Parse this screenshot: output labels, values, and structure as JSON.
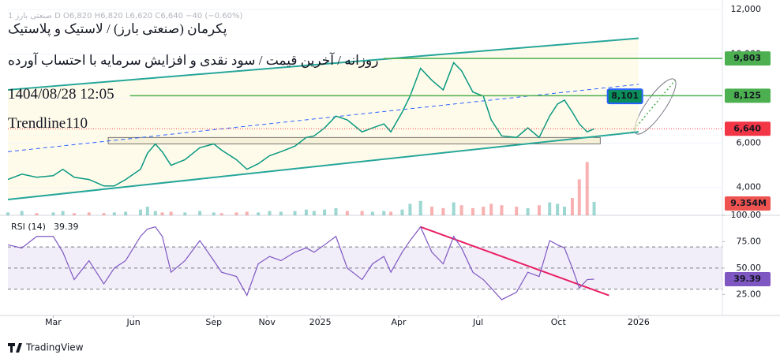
{
  "header": {
    "ohlc": "1  صنعتی بارز  D  O6,820  H6,820  L6,620  C6,640  −40 (−0.60%)"
  },
  "footer": {
    "brand": "TradingView"
  },
  "chart_data": [
    {
      "type": "line",
      "title": "پکرمان (صنعتی بارز) / لاستیک و پلاستیک",
      "subtitle": "روزانه / آخرین قیمت / سود نقدی و افزایش سرمایه با احتساب آورده",
      "annotations": [
        "1404/08/28 12:05",
        "Trendline110"
      ],
      "color": "#089981",
      "x": [
        "2024-01-09",
        "2024-01-25",
        "2024-02-11",
        "2024-03-01",
        "2024-03-12",
        "2024-03-25",
        "2024-04-11",
        "2024-04-28",
        "2024-05-10",
        "2024-05-23",
        "2024-06-09",
        "2024-06-17",
        "2024-06-26",
        "2024-07-04",
        "2024-07-14",
        "2024-07-30",
        "2024-08-16",
        "2024-09-01",
        "2024-09-10",
        "2024-09-27",
        "2024-10-09",
        "2024-10-22",
        "2024-11-04",
        "2024-11-17",
        "2024-12-03",
        "2024-12-16",
        "2024-12-25",
        "2025-01-06",
        "2025-01-19",
        "2025-02-01",
        "2025-02-18",
        "2025-03-02",
        "2025-03-15",
        "2025-03-23",
        "2025-04-05",
        "2025-04-14",
        "2025-04-26",
        "2025-05-09",
        "2025-05-22",
        "2025-06-03",
        "2025-06-12",
        "2025-06-25",
        "2025-07-07",
        "2025-07-16",
        "2025-07-28",
        "2025-08-14",
        "2025-08-27",
        "2025-09-09",
        "2025-09-21",
        "2025-09-30",
        "2025-10-08",
        "2025-10-17",
        "2025-10-25",
        "2025-11-03",
        "2025-11-11"
      ],
      "values": [
        4360,
        4600,
        4460,
        4530,
        4820,
        4460,
        4360,
        4070,
        4070,
        4360,
        4820,
        5540,
        5960,
        5600,
        5000,
        5250,
        5790,
        5960,
        5680,
        5250,
        4820,
        5070,
        5430,
        5610,
        5860,
        6250,
        6320,
        6680,
        7210,
        7040,
        6500,
        6680,
        6860,
        6500,
        7390,
        8110,
        9360,
        8820,
        8390,
        9610,
        9250,
        8290,
        8110,
        7040,
        6320,
        6250,
        6680,
        6250,
        7210,
        7750,
        7930,
        7390,
        6860,
        6500,
        6640
      ],
      "xlim": [
        "2024-01-09",
        "2026-04-07"
      ],
      "xticks": [
        {
          "value": "2024-03",
          "label": "Mar"
        },
        {
          "value": "2024-06",
          "label": "Jun"
        },
        {
          "value": "2024-09",
          "label": "Sep"
        },
        {
          "value": "2024-11",
          "label": "Nov"
        },
        {
          "value": "2025-01",
          "label": "2025"
        },
        {
          "value": "2025-04",
          "label": "Apr"
        },
        {
          "value": "2025-07",
          "label": "Jul"
        },
        {
          "value": "2025-10",
          "label": "Oct"
        },
        {
          "value": "2026-01",
          "label": "2026"
        }
      ],
      "ylim": [
        2750,
        12430
      ],
      "yticks": [
        {
          "value": 4000,
          "label": "4,000"
        },
        {
          "value": 6000,
          "label": "6,000"
        },
        {
          "value": 8000,
          "label": "8,000"
        },
        {
          "value": 10000,
          "label": "10,000"
        },
        {
          "value": 12000,
          "label": "12,000"
        }
      ],
      "trendlines": [
        {
          "x": [
            "2024-01-09",
            "2026-01-01"
          ],
          "values": [
            8390,
            10710
          ],
          "color": "#26a69a"
        },
        {
          "x": [
            "2024-01-09",
            "2026-01-01"
          ],
          "values": [
            3460,
            6500
          ],
          "color": "#26a69a"
        },
        {
          "x": [
            "2024-01-09",
            "2026-01-01"
          ],
          "values": [
            5610,
            8640
          ],
          "color": "#2962ff",
          "dash": true
        }
      ],
      "support_zone": {
        "x": [
          "2024-05-03",
          "2025-11-18"
        ],
        "values": [
          5960,
          6250
        ]
      },
      "levels": [
        {
          "value": 9803,
          "label": "9,803",
          "color": "#4caf50",
          "from": "2025-03-15"
        },
        {
          "value": 8125,
          "label": "8,125",
          "color": "#4caf50",
          "from": "2024-05-28"
        },
        {
          "value": 6640,
          "label": "6,640",
          "color": "#f23645",
          "from": "2024-01-09",
          "dotted": true
        },
        {
          "value": 8101,
          "label": "8,101",
          "color": "#0a8f5b",
          "at": "2025-12-20"
        }
      ]
    },
    {
      "type": "bar",
      "x": [
        "2024-01-09",
        "2024-01-25",
        "2024-02-11",
        "2024-03-01",
        "2024-03-12",
        "2024-03-25",
        "2024-04-11",
        "2024-04-28",
        "2024-05-10",
        "2024-05-23",
        "2024-06-09",
        "2024-06-17",
        "2024-06-26",
        "2024-07-04",
        "2024-07-14",
        "2024-07-30",
        "2024-08-16",
        "2024-09-01",
        "2024-09-10",
        "2024-09-27",
        "2024-10-09",
        "2024-10-22",
        "2024-11-04",
        "2024-11-17",
        "2024-12-03",
        "2024-12-16",
        "2024-12-25",
        "2025-01-06",
        "2025-01-19",
        "2025-02-01",
        "2025-02-18",
        "2025-03-02",
        "2025-03-15",
        "2025-03-23",
        "2025-04-05",
        "2025-04-14",
        "2025-04-26",
        "2025-05-09",
        "2025-05-22",
        "2025-06-03",
        "2025-06-12",
        "2025-06-25",
        "2025-07-07",
        "2025-07-16",
        "2025-07-28",
        "2025-08-14",
        "2025-08-27",
        "2025-09-09",
        "2025-09-21",
        "2025-09-30",
        "2025-10-08",
        "2025-10-17",
        "2025-10-25",
        "2025-11-03",
        "2025-11-11"
      ],
      "values": [
        2,
        3,
        1.5,
        2,
        3,
        1.5,
        2,
        1.5,
        2,
        2.5,
        4,
        6,
        3,
        2,
        2.5,
        2,
        3,
        2,
        1.5,
        2,
        2.5,
        2,
        3,
        2.5,
        3,
        4,
        3,
        4,
        5,
        3,
        3,
        2.5,
        3,
        2.5,
        4,
        8,
        10,
        6,
        5,
        9,
        7,
        5,
        6,
        8,
        7,
        6,
        5,
        7,
        9,
        8,
        6,
        12,
        25,
        37,
        9.354
      ],
      "ylim": [
        0,
        40
      ],
      "color": "#26a69a",
      "down_color": "#ef5350",
      "last_label": {
        "value": 9.354,
        "label": "9.354M"
      }
    },
    {
      "type": "line",
      "title": "RSI (14)",
      "color": "#7e57c2",
      "x": [
        "2024-01-09",
        "2024-01-25",
        "2024-02-11",
        "2024-03-01",
        "2024-03-12",
        "2024-03-25",
        "2024-04-11",
        "2024-04-28",
        "2024-05-10",
        "2024-05-23",
        "2024-06-09",
        "2024-06-17",
        "2024-06-26",
        "2024-07-04",
        "2024-07-14",
        "2024-07-30",
        "2024-08-16",
        "2024-09-01",
        "2024-09-10",
        "2024-09-27",
        "2024-10-09",
        "2024-10-22",
        "2024-11-04",
        "2024-11-17",
        "2024-12-03",
        "2024-12-16",
        "2024-12-25",
        "2025-01-06",
        "2025-01-19",
        "2025-02-01",
        "2025-02-18",
        "2025-03-02",
        "2025-03-15",
        "2025-03-23",
        "2025-04-05",
        "2025-04-14",
        "2025-04-26",
        "2025-05-09",
        "2025-05-22",
        "2025-06-03",
        "2025-06-12",
        "2025-06-25",
        "2025-07-07",
        "2025-07-16",
        "2025-07-28",
        "2025-08-14",
        "2025-08-27",
        "2025-09-09",
        "2025-09-21",
        "2025-09-30",
        "2025-10-08",
        "2025-10-17",
        "2025-10-25",
        "2025-11-03",
        "2025-11-11"
      ],
      "values": [
        72,
        69,
        80,
        80,
        65,
        39,
        57,
        35,
        50,
        57,
        80,
        87,
        89,
        80,
        46,
        57,
        76,
        57,
        46,
        42,
        24,
        54,
        61,
        57,
        65,
        69,
        65,
        72,
        80,
        50,
        39,
        54,
        61,
        46,
        65,
        76,
        89,
        65,
        54,
        80,
        69,
        46,
        39,
        31,
        20,
        27,
        46,
        42,
        76,
        72,
        69,
        50,
        31,
        39,
        39.39
      ],
      "ylim": [
        5,
        100
      ],
      "yticks": [
        {
          "value": 25,
          "label": "25.00"
        },
        {
          "value": 50,
          "label": "50.00"
        },
        {
          "value": 75,
          "label": "75.00"
        },
        {
          "value": 100,
          "label": "100.00"
        }
      ],
      "bands": [
        30,
        70
      ],
      "midline": 50,
      "trendlines": [
        {
          "x": [
            "2025-04-26",
            "2025-11-28"
          ],
          "values": [
            89,
            24
          ],
          "color": "#e91e63"
        }
      ]
    }
  ]
}
